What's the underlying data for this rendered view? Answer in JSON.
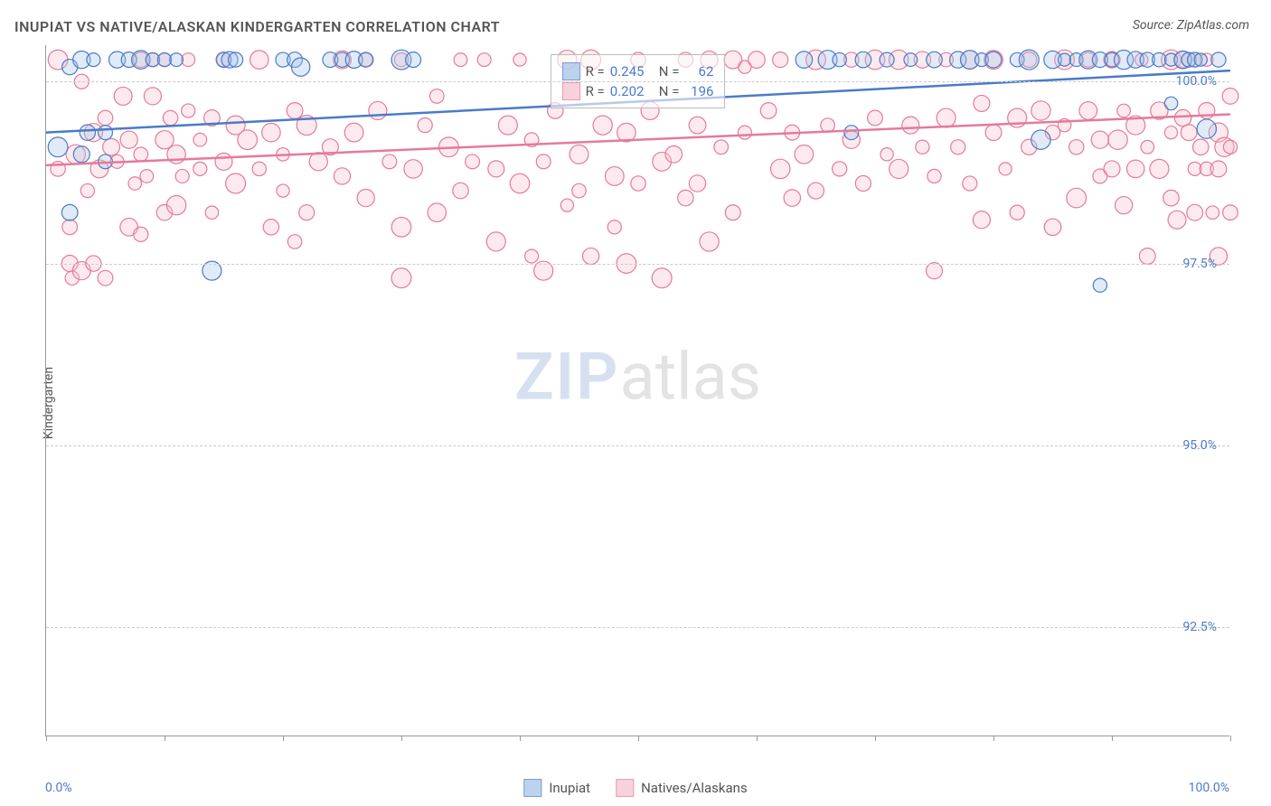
{
  "chart": {
    "type": "scatter",
    "title": "INUPIAT VS NATIVE/ALASKAN KINDERGARTEN CORRELATION CHART",
    "source": "Source: ZipAtlas.com",
    "y_axis_label": "Kindergarten",
    "watermark_zip": "ZIP",
    "watermark_atlas": "atlas",
    "background_color": "#ffffff",
    "grid_color": "#cccccc",
    "axis_color": "#999999",
    "text_color": "#555555",
    "tick_label_color": "#4a7bc8",
    "xlim": [
      0,
      100
    ],
    "ylim": [
      91.0,
      100.5
    ],
    "x_ticks": [
      0,
      10,
      20,
      30,
      40,
      50,
      60,
      70,
      80,
      90,
      100
    ],
    "x_tick_labels": {
      "0": "0.0%",
      "100": "100.0%"
    },
    "y_ticks": [
      92.5,
      95.0,
      97.5,
      100.0
    ],
    "y_tick_labels": [
      "92.5%",
      "95.0%",
      "97.5%",
      "100.0%"
    ],
    "marker_radius_base": 8,
    "series": [
      {
        "name": "Inupiat",
        "color_fill": "#a8c5e8",
        "color_stroke": "#4a7bc8",
        "r_value": "0.245",
        "n_value": "62",
        "trend": {
          "x1": 0,
          "y1": 99.3,
          "x2": 100,
          "y2": 100.15
        },
        "points": [
          [
            1,
            99.1
          ],
          [
            2,
            100.2
          ],
          [
            2,
            98.2
          ],
          [
            3,
            100.3
          ],
          [
            3,
            99.0
          ],
          [
            3.5,
            99.3
          ],
          [
            4,
            100.3
          ],
          [
            5,
            99.3
          ],
          [
            5,
            98.9
          ],
          [
            6,
            100.3
          ],
          [
            7,
            100.3
          ],
          [
            8,
            100.3
          ],
          [
            9,
            100.3
          ],
          [
            10,
            100.3
          ],
          [
            11,
            100.3
          ],
          [
            14,
            97.4
          ],
          [
            15,
            100.3
          ],
          [
            15.5,
            100.3
          ],
          [
            16,
            100.3
          ],
          [
            20,
            100.3
          ],
          [
            21,
            100.3
          ],
          [
            21.5,
            100.2
          ],
          [
            24,
            100.3
          ],
          [
            25,
            100.3
          ],
          [
            26,
            100.3
          ],
          [
            27,
            100.3
          ],
          [
            30,
            100.3
          ],
          [
            31,
            100.3
          ],
          [
            64,
            100.3
          ],
          [
            66,
            100.3
          ],
          [
            67,
            100.3
          ],
          [
            68,
            99.3
          ],
          [
            69,
            100.3
          ],
          [
            71,
            100.3
          ],
          [
            73,
            100.3
          ],
          [
            75,
            100.3
          ],
          [
            77,
            100.3
          ],
          [
            78,
            100.3
          ],
          [
            79,
            100.3
          ],
          [
            80,
            100.3
          ],
          [
            82,
            100.3
          ],
          [
            83,
            100.3
          ],
          [
            84,
            99.2
          ],
          [
            85,
            100.3
          ],
          [
            86,
            100.3
          ],
          [
            87,
            100.3
          ],
          [
            88,
            100.3
          ],
          [
            89,
            100.3
          ],
          [
            89,
            97.2
          ],
          [
            90,
            100.3
          ],
          [
            91,
            100.3
          ],
          [
            92,
            100.3
          ],
          [
            93,
            100.3
          ],
          [
            94,
            100.3
          ],
          [
            95,
            100.3
          ],
          [
            95,
            99.7
          ],
          [
            96,
            100.3
          ],
          [
            96.5,
            100.3
          ],
          [
            97,
            100.3
          ],
          [
            97.5,
            100.3
          ],
          [
            98,
            99.35
          ],
          [
            99,
            100.3
          ]
        ]
      },
      {
        "name": "Natives/Alaskans",
        "color_fill": "#f5c2cf",
        "color_stroke": "#e57a9a",
        "r_value": "0.202",
        "n_value": "196",
        "trend": {
          "x1": 0,
          "y1": 98.85,
          "x2": 100,
          "y2": 99.55
        },
        "points": [
          [
            1,
            98.8
          ],
          [
            1,
            100.3
          ],
          [
            2,
            98.0
          ],
          [
            2,
            97.5
          ],
          [
            2.2,
            97.3
          ],
          [
            2.5,
            99.0
          ],
          [
            3,
            97.4
          ],
          [
            3,
            100.0
          ],
          [
            3.5,
            98.5
          ],
          [
            4,
            97.5
          ],
          [
            4,
            99.3
          ],
          [
            4.5,
            98.8
          ],
          [
            5,
            99.5
          ],
          [
            5,
            97.3
          ],
          [
            5.5,
            99.1
          ],
          [
            6,
            98.9
          ],
          [
            6.5,
            99.8
          ],
          [
            7,
            99.2
          ],
          [
            7,
            98.0
          ],
          [
            7.5,
            98.6
          ],
          [
            8,
            99.0
          ],
          [
            8,
            97.9
          ],
          [
            8,
            100.3
          ],
          [
            8.5,
            98.7
          ],
          [
            9,
            99.8
          ],
          [
            9,
            100.3
          ],
          [
            10,
            98.2
          ],
          [
            10,
            100.3
          ],
          [
            10,
            99.2
          ],
          [
            10.5,
            99.5
          ],
          [
            11,
            99.0
          ],
          [
            11,
            98.3
          ],
          [
            11.5,
            98.7
          ],
          [
            12,
            100.3
          ],
          [
            12,
            99.6
          ],
          [
            13,
            99.2
          ],
          [
            13,
            98.8
          ],
          [
            14,
            99.5
          ],
          [
            14,
            98.2
          ],
          [
            15,
            100.3
          ],
          [
            15,
            98.9
          ],
          [
            16,
            99.4
          ],
          [
            16,
            98.6
          ],
          [
            17,
            99.2
          ],
          [
            18,
            100.3
          ],
          [
            18,
            98.8
          ],
          [
            19,
            99.3
          ],
          [
            19,
            98.0
          ],
          [
            20,
            99.0
          ],
          [
            20,
            98.5
          ],
          [
            21,
            99.6
          ],
          [
            21,
            97.8
          ],
          [
            22,
            98.2
          ],
          [
            22,
            99.4
          ],
          [
            23,
            98.9
          ],
          [
            24,
            99.1
          ],
          [
            25,
            98.7
          ],
          [
            25,
            100.3
          ],
          [
            26,
            99.3
          ],
          [
            27,
            100.3
          ],
          [
            27,
            98.4
          ],
          [
            28,
            99.6
          ],
          [
            29,
            98.9
          ],
          [
            30,
            100.3
          ],
          [
            30,
            98.0
          ],
          [
            30,
            97.3
          ],
          [
            31,
            98.8
          ],
          [
            32,
            99.4
          ],
          [
            33,
            98.2
          ],
          [
            33,
            99.8
          ],
          [
            34,
            99.1
          ],
          [
            35,
            98.5
          ],
          [
            35,
            100.3
          ],
          [
            36,
            98.9
          ],
          [
            37,
            100.3
          ],
          [
            38,
            98.8
          ],
          [
            38,
            97.8
          ],
          [
            39,
            99.4
          ],
          [
            40,
            98.6
          ],
          [
            40,
            100.3
          ],
          [
            41,
            99.2
          ],
          [
            41,
            97.6
          ],
          [
            42,
            98.9
          ],
          [
            42,
            97.4
          ],
          [
            43,
            99.6
          ],
          [
            44,
            100.3
          ],
          [
            44,
            98.3
          ],
          [
            45,
            99.0
          ],
          [
            45,
            98.5
          ],
          [
            46,
            100.3
          ],
          [
            46,
            97.6
          ],
          [
            47,
            99.4
          ],
          [
            48,
            98.7
          ],
          [
            48,
            98.0
          ],
          [
            49,
            99.3
          ],
          [
            49,
            97.5
          ],
          [
            50,
            100.3
          ],
          [
            50,
            98.6
          ],
          [
            51,
            99.6
          ],
          [
            52,
            98.9
          ],
          [
            52,
            97.3
          ],
          [
            53,
            99.0
          ],
          [
            54,
            98.4
          ],
          [
            54,
            100.3
          ],
          [
            55,
            99.4
          ],
          [
            55,
            98.6
          ],
          [
            56,
            100.3
          ],
          [
            56,
            97.8
          ],
          [
            57,
            99.1
          ],
          [
            58,
            100.3
          ],
          [
            58,
            98.2
          ],
          [
            59,
            99.3
          ],
          [
            59,
            100.2
          ],
          [
            60,
            100.3
          ],
          [
            61,
            99.6
          ],
          [
            62,
            98.8
          ],
          [
            62,
            100.3
          ],
          [
            63,
            99.3
          ],
          [
            63,
            98.4
          ],
          [
            64,
            99.0
          ],
          [
            65,
            100.3
          ],
          [
            65,
            98.5
          ],
          [
            66,
            99.4
          ],
          [
            67,
            98.8
          ],
          [
            68,
            100.3
          ],
          [
            68,
            99.2
          ],
          [
            69,
            98.6
          ],
          [
            70,
            99.5
          ],
          [
            70,
            100.3
          ],
          [
            71,
            99.0
          ],
          [
            72,
            100.3
          ],
          [
            72,
            98.8
          ],
          [
            73,
            99.4
          ],
          [
            74,
            99.1
          ],
          [
            74,
            100.3
          ],
          [
            75,
            98.7
          ],
          [
            75,
            97.4
          ],
          [
            76,
            99.5
          ],
          [
            76,
            100.3
          ],
          [
            77,
            99.1
          ],
          [
            78,
            98.6
          ],
          [
            78,
            100.3
          ],
          [
            79,
            99.7
          ],
          [
            79,
            98.1
          ],
          [
            80,
            99.3
          ],
          [
            80,
            100.3
          ],
          [
            81,
            98.8
          ],
          [
            82,
            99.5
          ],
          [
            82,
            98.2
          ],
          [
            83,
            99.1
          ],
          [
            83,
            100.3
          ],
          [
            84,
            99.6
          ],
          [
            85,
            99.3
          ],
          [
            85,
            98.0
          ],
          [
            86,
            99.4
          ],
          [
            86,
            100.3
          ],
          [
            87,
            99.1
          ],
          [
            87,
            98.4
          ],
          [
            88,
            99.6
          ],
          [
            88,
            100.3
          ],
          [
            89,
            99.2
          ],
          [
            89,
            98.7
          ],
          [
            90,
            98.8
          ],
          [
            90,
            100.3
          ],
          [
            90.5,
            99.2
          ],
          [
            91,
            99.6
          ],
          [
            91,
            98.3
          ],
          [
            92,
            99.4
          ],
          [
            92,
            98.8
          ],
          [
            92.5,
            100.3
          ],
          [
            93,
            99.1
          ],
          [
            93,
            97.6
          ],
          [
            94,
            99.6
          ],
          [
            94,
            98.8
          ],
          [
            95,
            99.3
          ],
          [
            95,
            98.4
          ],
          [
            95,
            100.3
          ],
          [
            95.5,
            98.1
          ],
          [
            96,
            99.5
          ],
          [
            96,
            100.3
          ],
          [
            96.5,
            99.3
          ],
          [
            97,
            98.8
          ],
          [
            97,
            98.2
          ],
          [
            97,
            100.3
          ],
          [
            97.5,
            99.1
          ],
          [
            98,
            99.6
          ],
          [
            98,
            98.8
          ],
          [
            98,
            100.3
          ],
          [
            98.5,
            98.2
          ],
          [
            99,
            99.3
          ],
          [
            99,
            97.6
          ],
          [
            99,
            98.8
          ],
          [
            99.5,
            99.1
          ],
          [
            100,
            99.1
          ],
          [
            100,
            98.2
          ],
          [
            100,
            99.8
          ]
        ]
      }
    ],
    "legend_bottom": [
      {
        "label": "Inupiat",
        "fill": "#a8c5e8",
        "stroke": "#4a7bc8"
      },
      {
        "label": "Natives/Alaskans",
        "fill": "#f5c2cf",
        "stroke": "#e57a9a"
      }
    ],
    "legend_top_label_r": "R =",
    "legend_top_label_n": "N ="
  }
}
